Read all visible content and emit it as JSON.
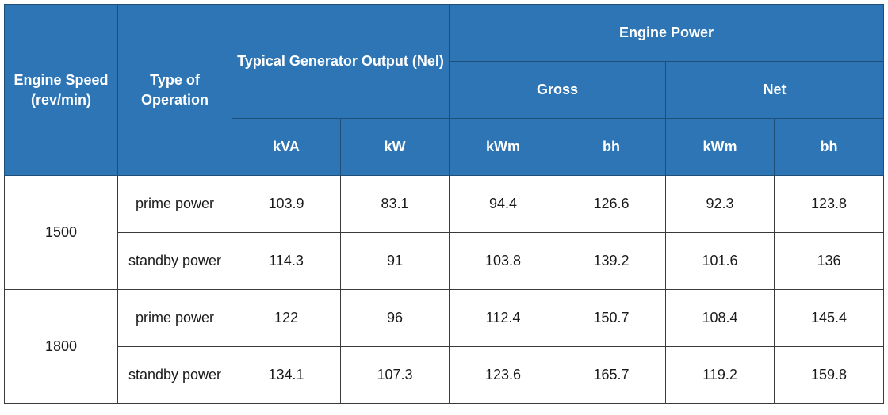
{
  "header": {
    "engine_speed": "Engine Speed (rev/min)",
    "type_of_operation": "Type of Operation",
    "typical_generator_output": "Typical Generator Output (Nel)",
    "engine_power": "Engine Power",
    "gross": "Gross",
    "net": "Net",
    "units": [
      "kVA",
      "kW",
      "kWm",
      "bh",
      "kWm",
      "bh"
    ]
  },
  "groups": [
    {
      "speed": "1500",
      "rows": [
        {
          "operation": "prime power",
          "values": [
            "103.9",
            "83.1",
            "94.4",
            "126.6",
            "92.3",
            "123.8"
          ]
        },
        {
          "operation": "standby power",
          "values": [
            "114.3",
            "91",
            "103.8",
            "139.2",
            "101.6",
            "136"
          ]
        }
      ]
    },
    {
      "speed": "1800",
      "rows": [
        {
          "operation": "prime power",
          "values": [
            "122",
            "96",
            "112.4",
            "150.7",
            "108.4",
            "145.4"
          ]
        },
        {
          "operation": "standby power",
          "values": [
            "134.1",
            "107.3",
            "123.6",
            "165.7",
            "119.2",
            "159.8"
          ]
        }
      ]
    }
  ]
}
